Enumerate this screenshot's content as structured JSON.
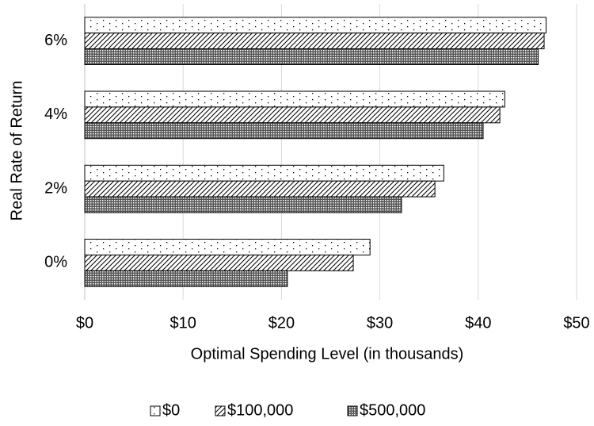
{
  "chart_data": {
    "type": "hbar",
    "xlabel": "Optimal Spending Level (in thousands)",
    "ylabel": "Real Rate of Return",
    "categories": [
      "0%",
      "2%",
      "4%",
      "6%"
    ],
    "series": [
      {
        "name": "$0",
        "color": "#000000",
        "values": [
          29.0,
          36.5,
          42.7,
          46.9
        ]
      },
      {
        "name": "$100,000",
        "color": "#000000",
        "values": [
          27.3,
          35.6,
          42.2,
          46.7
        ]
      },
      {
        "name": "$500,000",
        "color": "#000000",
        "values": [
          20.6,
          32.2,
          40.5,
          46.1
        ]
      }
    ],
    "xlim": [
      0,
      50
    ],
    "xticks": [
      {
        "value": 0,
        "label": "$0"
      },
      {
        "value": 10,
        "label": "$10"
      },
      {
        "value": 20,
        "label": "$20"
      },
      {
        "value": 30,
        "label": "$30"
      },
      {
        "value": 40,
        "label": "$40"
      },
      {
        "value": 50,
        "label": "$50"
      }
    ],
    "grid": true,
    "legend": "bottom"
  }
}
